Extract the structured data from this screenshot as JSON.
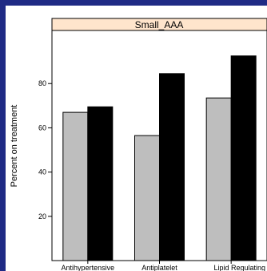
{
  "colors": {
    "background": "#1f2a85",
    "panel": "#ffffff",
    "strip": "#ffe5cc",
    "series_1": "#bebebe",
    "series_2": "#000000"
  },
  "chart_data": {
    "type": "bar",
    "panel_title": "Small_AAA",
    "ylabel": "Percent on treatment",
    "xlabel": "",
    "categories": [
      "Antihypertensive",
      "Antiplatelet",
      "Lipid Regulating"
    ],
    "series": [
      {
        "values": [
          67,
          56.5,
          73.5
        ]
      },
      {
        "values": [
          69.5,
          84.5,
          92.5
        ]
      }
    ],
    "ylim": [
      0,
      104
    ],
    "yticks": [
      20,
      40,
      60,
      80
    ],
    "grid": false,
    "legend": "none"
  }
}
